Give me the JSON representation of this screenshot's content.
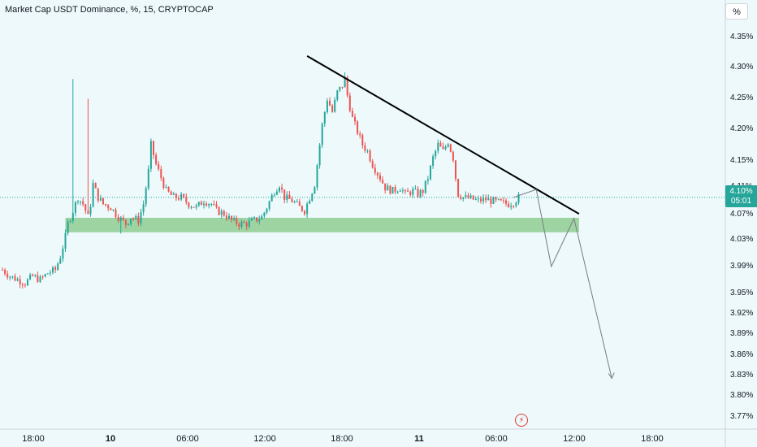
{
  "header": {
    "title": "Market Cap USDT Dominance, %, 15, CRYPTOCAP",
    "scale_button": "%"
  },
  "colors": {
    "background": "#edf9fb",
    "up": "#26a69a",
    "down": "#ef5350",
    "zone": "#81c784",
    "trendline": "#000000",
    "projection": "#787b86",
    "price_line": "#26a69a"
  },
  "price_tag": {
    "price": "4.10%",
    "countdown": "05:01"
  },
  "chart_data": {
    "type": "candlestick",
    "symbol": "Market Cap USDT Dominance",
    "interval": "15",
    "y_unit": "%",
    "y_ticks": [
      "4.35%",
      "4.30%",
      "4.25%",
      "4.20%",
      "4.15%",
      "4.11%",
      "4.07%",
      "4.03%",
      "3.99%",
      "3.95%",
      "3.92%",
      "3.89%",
      "3.86%",
      "3.83%",
      "3.80%",
      "3.77%"
    ],
    "x_ticks": [
      {
        "label": "18:00",
        "bold": false
      },
      {
        "label": "10",
        "bold": true
      },
      {
        "label": "06:00",
        "bold": false
      },
      {
        "label": "12:00",
        "bold": false
      },
      {
        "label": "18:00",
        "bold": false
      },
      {
        "label": "11",
        "bold": true
      },
      {
        "label": "06:00",
        "bold": false
      },
      {
        "label": "12:00",
        "bold": false
      },
      {
        "label": "18:00",
        "bold": false
      }
    ],
    "last_price": 4.1,
    "close_path": [
      [
        0,
        3.99
      ],
      [
        3,
        3.98
      ],
      [
        6,
        3.975
      ],
      [
        9,
        3.97
      ],
      [
        12,
        3.98
      ],
      [
        15,
        3.975
      ],
      [
        18,
        3.985
      ],
      [
        21,
        3.99
      ],
      [
        23,
        4.01
      ],
      [
        25,
        4.04
      ],
      [
        26,
        4.06
      ],
      [
        28,
        4.08
      ],
      [
        30,
        4.1
      ],
      [
        32,
        4.09
      ],
      [
        34,
        4.07
      ],
      [
        35,
        4.09
      ],
      [
        36,
        4.12
      ],
      [
        38,
        4.1
      ],
      [
        40,
        4.09
      ],
      [
        43,
        4.085
      ],
      [
        46,
        4.07
      ],
      [
        49,
        4.06
      ],
      [
        51,
        4.07
      ],
      [
        54,
        4.065
      ],
      [
        56,
        4.09
      ],
      [
        58,
        4.14
      ],
      [
        59,
        4.18
      ],
      [
        61,
        4.15
      ],
      [
        63,
        4.13
      ],
      [
        65,
        4.11
      ],
      [
        68,
        4.1
      ],
      [
        71,
        4.1
      ],
      [
        74,
        4.09
      ],
      [
        77,
        4.085
      ],
      [
        80,
        4.095
      ],
      [
        83,
        4.09
      ],
      [
        85,
        4.08
      ],
      [
        88,
        4.075
      ],
      [
        91,
        4.065
      ],
      [
        94,
        4.06
      ],
      [
        97,
        4.06
      ],
      [
        100,
        4.065
      ],
      [
        103,
        4.07
      ],
      [
        105,
        4.085
      ],
      [
        108,
        4.11
      ],
      [
        110,
        4.12
      ],
      [
        112,
        4.1
      ],
      [
        115,
        4.095
      ],
      [
        118,
        4.085
      ],
      [
        120,
        4.08
      ],
      [
        122,
        4.1
      ],
      [
        124,
        4.12
      ],
      [
        125,
        4.15
      ],
      [
        127,
        4.21
      ],
      [
        129,
        4.25
      ],
      [
        131,
        4.23
      ],
      [
        133,
        4.26
      ],
      [
        135,
        4.27
      ],
      [
        136,
        4.28
      ],
      [
        137,
        4.255
      ],
      [
        139,
        4.22
      ],
      [
        141,
        4.2
      ],
      [
        143,
        4.18
      ],
      [
        145,
        4.17
      ],
      [
        147,
        4.15
      ],
      [
        150,
        4.13
      ],
      [
        152,
        4.115
      ],
      [
        155,
        4.11
      ],
      [
        158,
        4.115
      ],
      [
        160,
        4.105
      ],
      [
        163,
        4.11
      ],
      [
        165,
        4.105
      ],
      [
        167,
        4.11
      ],
      [
        169,
        4.13
      ],
      [
        171,
        4.16
      ],
      [
        173,
        4.18
      ],
      [
        175,
        4.17
      ],
      [
        177,
        4.185
      ],
      [
        179,
        4.16
      ],
      [
        180,
        4.13
      ],
      [
        181,
        4.105
      ],
      [
        183,
        4.1
      ],
      [
        186,
        4.098
      ],
      [
        189,
        4.095
      ],
      [
        192,
        4.097
      ],
      [
        195,
        4.094
      ],
      [
        198,
        4.092
      ],
      [
        201,
        4.09
      ],
      [
        203,
        4.093
      ],
      [
        205,
        4.1
      ]
    ],
    "wicks": [
      {
        "bar": 28,
        "high": 4.28
      },
      {
        "bar": 34,
        "high": 4.25
      },
      {
        "bar": 47,
        "low": 4.045
      },
      {
        "bar": 136,
        "high": 4.29
      }
    ],
    "support_zone": {
      "low": 4.047,
      "high": 4.069,
      "from_bar": 25,
      "to_bar": 229
    },
    "trendline": {
      "from": {
        "bar": 121,
        "value": 4.315
      },
      "to": {
        "bar": 229,
        "value": 4.075
      }
    },
    "projection_path": [
      {
        "bar": 203,
        "value": 4.1
      },
      {
        "bar": 212,
        "value": 4.112
      },
      {
        "bar": 218,
        "value": 3.995
      },
      {
        "bar": 227,
        "value": 4.068
      },
      {
        "bar": 242,
        "value": 3.825
      }
    ]
  }
}
